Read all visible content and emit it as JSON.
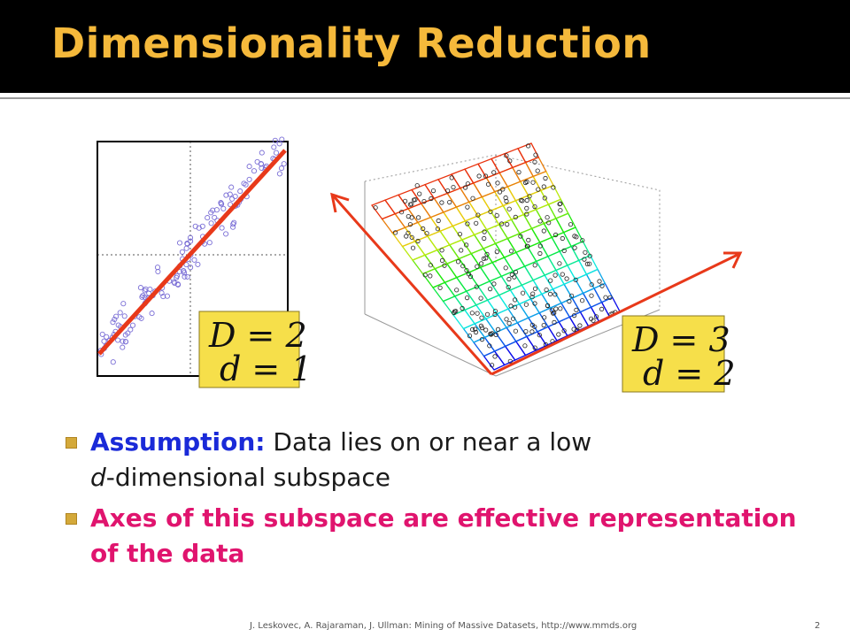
{
  "slide": {
    "title": "Dimensionality Reduction",
    "accent_color": "#f5b93b",
    "title_bar_color": "#000000"
  },
  "figure_2d": {
    "label_line1": "D = 2",
    "label_line2": "d = 1",
    "point_color": "#7b6fd6",
    "line_color": "#e8391a",
    "label_box_color": "#f6df4a"
  },
  "figure_3d": {
    "label_line1": "D = 3",
    "label_line2": "d = 2",
    "arrow_color": "#e8391a",
    "label_box_color": "#f6df4a"
  },
  "bullets": [
    {
      "lead": "Assumption:",
      "text_a": " Data lies on or near a low",
      "italic": "d",
      "text_b": "-dimensional subspace"
    },
    {
      "text": "Axes of this subspace are effective representation of the data"
    }
  ],
  "footer": {
    "citation": "J. Leskovec,  A. Rajaraman, J. Ullman: Mining of Massive Datasets, http://www.mmds.org",
    "page_number": "2"
  }
}
